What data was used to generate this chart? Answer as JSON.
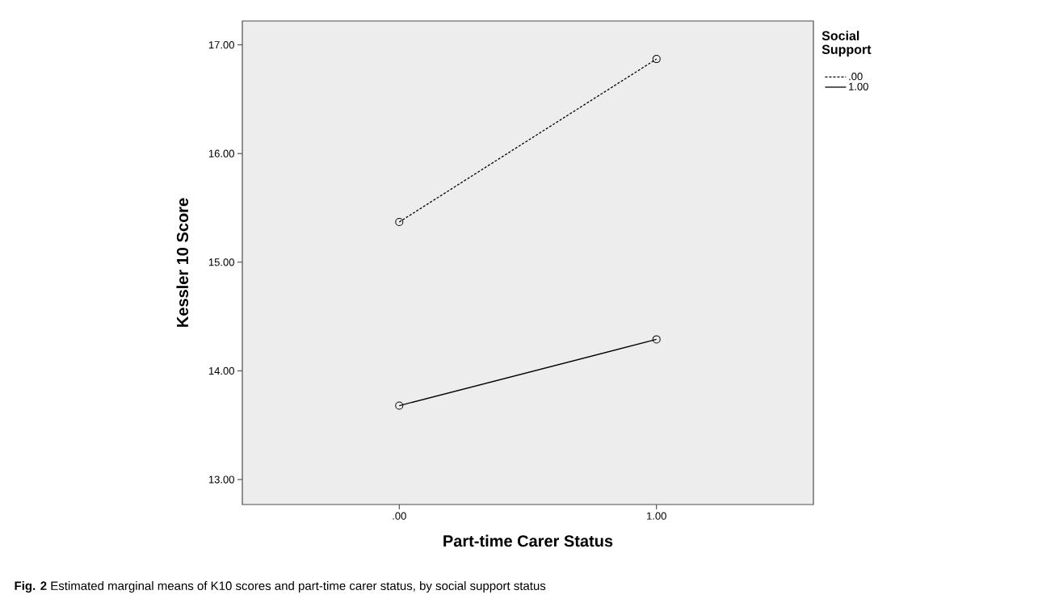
{
  "chart_data": {
    "type": "line",
    "xlabel": "Part-time Carer Status",
    "ylabel": "Kessler 10 Score",
    "legend_title": "Social Support",
    "x": [
      0,
      1
    ],
    "series": [
      {
        "name": ".00",
        "color": "#000000",
        "line_style": "dashed",
        "values": [
          15.37,
          16.87
        ]
      },
      {
        "name": "1.00",
        "color": "#000000",
        "line_style": "solid",
        "values": [
          13.68,
          14.29
        ]
      }
    ],
    "xlim": [
      -0.61,
      1.61
    ],
    "xticks": [
      {
        "value": 0,
        "label": ".00"
      },
      {
        "value": 1,
        "label": "1.00"
      }
    ],
    "ylim": [
      12.77,
      17.22
    ],
    "yticks": [
      {
        "value": 13,
        "label": "13.00"
      },
      {
        "value": 14,
        "label": "14.00"
      },
      {
        "value": 15,
        "label": "15.00"
      },
      {
        "value": 16,
        "label": "16.00"
      },
      {
        "value": 17,
        "label": "17.00"
      }
    ],
    "marker": "circle",
    "legend": "top right",
    "grid": false,
    "annotations": [
      "**Fig. 2** Estimated marginal means of K10 scores and part-time carer status, by social support status"
    ]
  }
}
